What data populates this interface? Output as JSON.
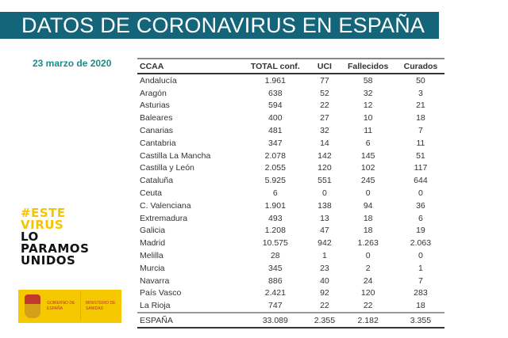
{
  "title": "DATOS DE CORONAVIRUS EN ESPAÑA",
  "date": "23 marzo de 2020",
  "table": {
    "headers": [
      "CCAA",
      "TOTAL conf.",
      "UCI",
      "Fallecidos",
      "Curados"
    ],
    "rows": [
      [
        "Andalucía",
        "1.961",
        "77",
        "58",
        "50"
      ],
      [
        "Aragón",
        "638",
        "52",
        "32",
        "3"
      ],
      [
        "Asturias",
        "594",
        "22",
        "12",
        "21"
      ],
      [
        "Baleares",
        "400",
        "27",
        "10",
        "18"
      ],
      [
        "Canarias",
        "481",
        "32",
        "11",
        "7"
      ],
      [
        "Cantabria",
        "347",
        "14",
        "6",
        "11"
      ],
      [
        "Castilla La Mancha",
        "2.078",
        "142",
        "145",
        "51"
      ],
      [
        "Castilla y León",
        "2.055",
        "120",
        "102",
        "117"
      ],
      [
        "Cataluña",
        "5.925",
        "551",
        "245",
        "644"
      ],
      [
        "Ceuta",
        "6",
        "0",
        "0",
        "0"
      ],
      [
        "C. Valenciana",
        "1.901",
        "138",
        "94",
        "36"
      ],
      [
        "Extremadura",
        "493",
        "13",
        "18",
        "6"
      ],
      [
        "Galicia",
        "1.208",
        "47",
        "18",
        "19"
      ],
      [
        "Madrid",
        "10.575",
        "942",
        "1.263",
        "2.063"
      ],
      [
        "Melilla",
        "28",
        "1",
        "0",
        "0"
      ],
      [
        "Murcia",
        "345",
        "23",
        "2",
        "1"
      ],
      [
        "Navarra",
        "886",
        "40",
        "24",
        "7"
      ],
      [
        "País Vasco",
        "2.421",
        "92",
        "120",
        "283"
      ],
      [
        "La Rioja",
        "747",
        "22",
        "22",
        "18"
      ]
    ],
    "total": [
      "ESPAÑA",
      "33.089",
      "2.355",
      "2.182",
      "3.355"
    ]
  },
  "slogan": {
    "line1": "#ESTE",
    "line2": "VIRUS",
    "line3": "LO",
    "line4": "PARAMOS",
    "line5": "UNIDOS"
  },
  "logo": {
    "left": "GOBIERNO DE ESPAÑA",
    "right": "MINISTERIO DE SANIDAD"
  },
  "colors": {
    "banner": "#14657a",
    "date": "#1c8a8a",
    "slogan_accent": "#f5c400",
    "logo_bg": "#f6c800"
  }
}
